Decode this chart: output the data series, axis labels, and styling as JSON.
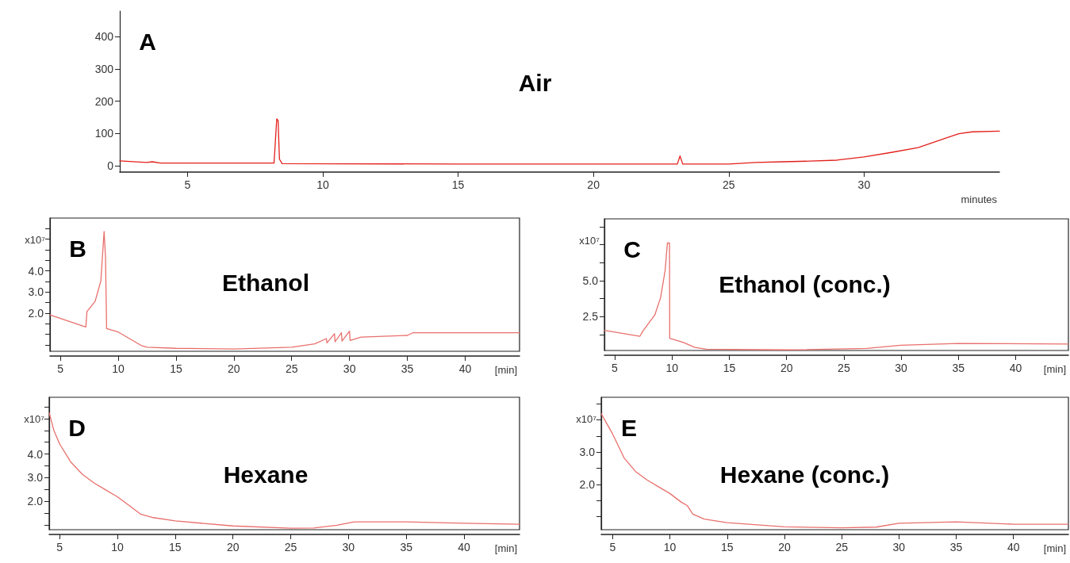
{
  "chart_data": [
    {
      "type": "line",
      "title": "Air",
      "annotations": [
        "A"
      ],
      "xlabel": "minutes",
      "marker": "none",
      "line_style": "solid",
      "xlim": [
        2.5,
        35
      ],
      "ylim": [
        -20,
        480
      ],
      "xticks": [
        5,
        10,
        15,
        20,
        25,
        30
      ],
      "yticks": [
        0,
        100,
        200,
        300,
        400
      ],
      "x": [
        2.5,
        3.5,
        3.7,
        4,
        8.2,
        8.3,
        8.35,
        8.4,
        8.5,
        15,
        20,
        23.1,
        23.2,
        23.3,
        25,
        26,
        27,
        28,
        29,
        30,
        31,
        32,
        33,
        33.5,
        34,
        35
      ],
      "series": [
        {
          "color": "#e3201b",
          "values": [
            15,
            10,
            12,
            8,
            8,
            145,
            140,
            20,
            6,
            5,
            5,
            5,
            30,
            5,
            5,
            10,
            12,
            14,
            17,
            27,
            41,
            56,
            85,
            99,
            105,
            107
          ]
        }
      ]
    },
    {
      "type": "line",
      "title": "Ethanol",
      "annotations": [
        "B"
      ],
      "xlabel": "[min]",
      "ylabel": "x10⁷",
      "marker": "none",
      "line_style": "solid",
      "xlim": [
        4.1,
        44.7
      ],
      "ylim": [
        0.2,
        6.5
      ],
      "xticks": [
        5,
        10,
        15,
        20,
        25,
        30,
        35,
        40
      ],
      "yticks": [
        {
          "value": 0.5,
          "label": null
        },
        {
          "value": 1,
          "label": null
        },
        {
          "value": 1.5,
          "label": null
        },
        {
          "value": 2,
          "label": "2.0"
        },
        {
          "value": 2.5,
          "label": null
        },
        {
          "value": 3,
          "label": "3.0"
        },
        {
          "value": 3.5,
          "label": null
        },
        {
          "value": 4,
          "label": "4.0"
        },
        {
          "value": 4.5,
          "label": null
        },
        {
          "value": 5,
          "label": null
        },
        {
          "value": 5.5,
          "label": null
        },
        {
          "value": 6,
          "label": null
        }
      ],
      "x": [
        4.1,
        7.2,
        7.3,
        8,
        8.5,
        8.78,
        8.9,
        9,
        10,
        11,
        12,
        12.5,
        15,
        20,
        25,
        27,
        28,
        28.05,
        28.7,
        28.75,
        29.3,
        29.35,
        30,
        30.05,
        31,
        35,
        35.5,
        44.7
      ],
      "series": [
        {
          "color": "#e8706c",
          "values": [
            1.92,
            1.35,
            2.08,
            2.56,
            3.53,
            5.87,
            4.66,
            1.27,
            1.11,
            0.79,
            0.47,
            0.39,
            0.34,
            0.31,
            0.39,
            0.55,
            0.8,
            0.6,
            1.03,
            0.65,
            1.08,
            0.68,
            1.15,
            0.71,
            0.87,
            0.95,
            1.08,
            1.08
          ]
        }
      ]
    },
    {
      "type": "line",
      "title": "Ethanol (conc.)",
      "annotations": [
        "C"
      ],
      "xlabel": "[min]",
      "ylabel": "x10⁷",
      "marker": "none",
      "line_style": "solid",
      "xlim": [
        4.1,
        44.6
      ],
      "ylim": [
        0.15,
        9.3
      ],
      "xticks": [
        5,
        10,
        15,
        20,
        25,
        30,
        35,
        40
      ],
      "yticks": [
        {
          "value": 1.25,
          "label": null
        },
        {
          "value": 2.5,
          "label": "2.5"
        },
        {
          "value": 3.75,
          "label": null
        },
        {
          "value": 5,
          "label": "5.0"
        },
        {
          "value": 6.25,
          "label": null
        },
        {
          "value": 7.5,
          "label": null
        },
        {
          "value": 8.75,
          "label": null
        }
      ],
      "x": [
        4.1,
        7.2,
        7.5,
        8.5,
        9,
        9.4,
        9.6,
        9.78,
        9.8,
        11,
        12,
        13,
        20,
        27,
        30,
        35,
        44.6
      ],
      "series": [
        {
          "color": "#e8706c",
          "values": [
            1.55,
            1.14,
            1.55,
            2.62,
            3.81,
            5.71,
            7.62,
            7.62,
            1.0,
            0.71,
            0.36,
            0.24,
            0.19,
            0.29,
            0.52,
            0.64,
            0.6
          ]
        }
      ]
    },
    {
      "type": "line",
      "title": "Hexane",
      "annotations": [
        "D"
      ],
      "xlabel": "[min]",
      "ylabel": "x10⁷",
      "marker": "none",
      "line_style": "solid",
      "xlim": [
        4.1,
        44.8
      ],
      "ylim": [
        0.8,
        6.4
      ],
      "xticks": [
        5,
        10,
        15,
        20,
        25,
        30,
        35,
        40
      ],
      "yticks": [
        {
          "value": 1,
          "label": null
        },
        {
          "value": 1.5,
          "label": null
        },
        {
          "value": 2,
          "label": "2.0"
        },
        {
          "value": 2.5,
          "label": null
        },
        {
          "value": 3,
          "label": "3.0"
        },
        {
          "value": 3.5,
          "label": null
        },
        {
          "value": 4,
          "label": "4.0"
        },
        {
          "value": 4.5,
          "label": null
        },
        {
          "value": 5,
          "label": null
        },
        {
          "value": 5.5,
          "label": null
        },
        {
          "value": 6,
          "label": null
        }
      ],
      "x": [
        4.1,
        4.5,
        5,
        6,
        7,
        8,
        9,
        10,
        11,
        12,
        13,
        15,
        20,
        25,
        27,
        29,
        30.5,
        35,
        40,
        44.8
      ],
      "series": [
        {
          "color": "#e8706c",
          "values": [
            5.74,
            5.01,
            4.43,
            3.64,
            3.13,
            2.77,
            2.48,
            2.19,
            1.83,
            1.46,
            1.32,
            1.17,
            0.96,
            0.86,
            0.87,
            0.99,
            1.13,
            1.13,
            1.07,
            1.03
          ]
        }
      ]
    },
    {
      "type": "line",
      "title": "Hexane (conc.)",
      "annotations": [
        "E"
      ],
      "xlabel": "[min]",
      "ylabel": "x10⁷",
      "marker": "none",
      "line_style": "solid",
      "xlim": [
        4.0,
        44.8
      ],
      "ylim": [
        0.6,
        4.7
      ],
      "xticks": [
        5,
        10,
        15,
        20,
        25,
        30,
        35,
        40
      ],
      "yticks": [
        {
          "value": 1,
          "label": null
        },
        {
          "value": 1.5,
          "label": null
        },
        {
          "value": 2,
          "label": "2.0"
        },
        {
          "value": 2.5,
          "label": null
        },
        {
          "value": 3,
          "label": "3.0"
        },
        {
          "value": 3.5,
          "label": null
        },
        {
          "value": 4,
          "label": null
        },
        {
          "value": 4.5,
          "label": null
        }
      ],
      "x": [
        4.0,
        5,
        6,
        7,
        8,
        9,
        10,
        11,
        11.5,
        12,
        13,
        15,
        20,
        25,
        28,
        30,
        35,
        40,
        44.8
      ],
      "series": [
        {
          "color": "#e8706c",
          "values": [
            4.19,
            3.56,
            2.82,
            2.4,
            2.14,
            1.93,
            1.72,
            1.45,
            1.35,
            1.08,
            0.93,
            0.82,
            0.69,
            0.66,
            0.68,
            0.8,
            0.84,
            0.77,
            0.77
          ]
        }
      ]
    }
  ]
}
